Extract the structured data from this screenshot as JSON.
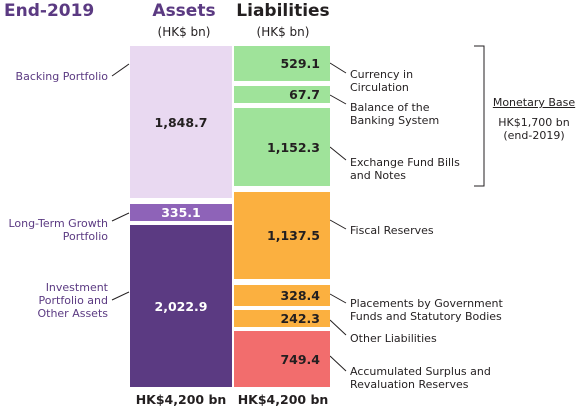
{
  "header": {
    "year": "End-2019",
    "assets_title": "Assets",
    "assets_unit": "(HK$ bn)",
    "liabilities_title": "Liabilities",
    "liabilities_unit": "(HK$ bn)"
  },
  "assets": [
    {
      "name": "backing",
      "label": "Backing Portfolio",
      "value": "1,848.7",
      "color": "#e9d9f1"
    },
    {
      "name": "ltgp",
      "label": "Long-Term Growth Portfolio",
      "value": "335.1",
      "color": "#8e63b8"
    },
    {
      "name": "investment",
      "label": "Investment Portfolio and Other Assets",
      "value": "2,022.9",
      "color": "#5b3a82"
    }
  ],
  "liabilities": [
    {
      "name": "currency",
      "label": "Currency in Circulation",
      "value": "529.1",
      "color": "#9fe39a"
    },
    {
      "name": "balance",
      "label": "Balance of the Banking System",
      "value": "67.7",
      "color": "#9fe39a"
    },
    {
      "name": "efbn",
      "label": "Exchange Fund Bills and Notes",
      "value": "1,152.3",
      "color": "#9fe39a"
    },
    {
      "name": "fiscal",
      "label": "Fiscal Reserves",
      "value": "1,137.5",
      "color": "#fbb040"
    },
    {
      "name": "placements",
      "label": "Placements by Government Funds and Statutory Bodies",
      "value": "328.4",
      "color": "#fbb040"
    },
    {
      "name": "other",
      "label": "Other Liabilities",
      "value": "242.3",
      "color": "#fbb040"
    },
    {
      "name": "surplus",
      "label": "Accumulated Surplus and Revaluation Reserves",
      "value": "749.4",
      "color": "#f26d6d"
    }
  ],
  "monetary_base": {
    "title": "Monetary Base",
    "line1": "HK$1,700 bn",
    "line2": "(end-2019)"
  },
  "totals": {
    "assets": "HK$4,200 bn",
    "liabilities": "HK$4,200 bn"
  },
  "colors": {
    "purple_text": "#5b3a82",
    "connector": "#231f20"
  }
}
